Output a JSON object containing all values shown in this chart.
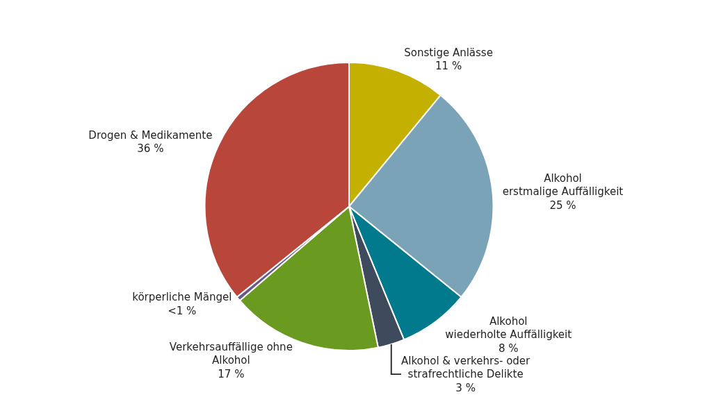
{
  "chart_data": {
    "type": "pie",
    "categories": [
      "Sonstige Anlässe",
      "Alkohol\nerstmalige Auffälligkeit",
      "Alkohol\nwiederholte Auffälligkeit",
      "Alkohol & verkehrs- oder\nstrafrechtliche Delikte",
      "Verkehrsauffällige ohne\nAlkohol",
      "körperliche Mängel",
      "Drogen & Medikamente"
    ],
    "values": [
      11,
      25,
      8,
      3,
      17,
      0.5,
      36
    ],
    "value_labels": [
      "11 %",
      "25 %",
      "8 %",
      "3 %",
      "17 %",
      "<1 %",
      "36 %"
    ],
    "colors": [
      "#c4b000",
      "#7aa3b8",
      "#007a8c",
      "#3d4b5c",
      "#6a9a1f",
      "#6a5a8c",
      "#b8463a"
    ],
    "legend": false
  }
}
